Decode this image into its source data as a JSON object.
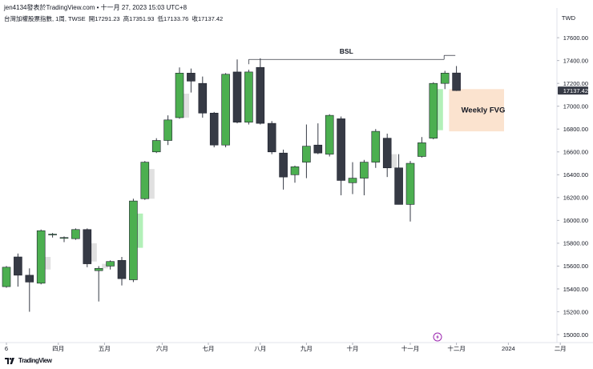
{
  "header": {
    "published": "jen4134發表於TradingView.com",
    "timestamp": "十一月 27, 2023 15:03 UTC+8"
  },
  "symbol": {
    "name": "台灣加權股票指數, 1周, TWSE",
    "open_label": "開",
    "open": "17291.23",
    "high_label": "高",
    "high": "17351.93",
    "low_label": "低",
    "low": "17133.76",
    "close_label": "收",
    "close": "17137.42"
  },
  "currency": "TWD",
  "footer": {
    "brand": "TradingView"
  },
  "colors": {
    "up": "#4caf50",
    "down": "#363a45",
    "fvg_fill": "#fbe3cf",
    "fvg_light": "#b2f0b8",
    "price_tag": "#363a45",
    "wick": "#363a45"
  },
  "chart_data": {
    "type": "candlestick",
    "interval": "weekly",
    "y_ticks": [
      15000,
      15200,
      15400,
      15600,
      15800,
      16000,
      16200,
      16400,
      16600,
      16800,
      17000,
      17200,
      17400,
      17600
    ],
    "y_tick_labels": [
      "15000.00",
      "15200.00",
      "15400.00",
      "15600.00",
      "15800.00",
      "16000.00",
      "16200.00",
      "16400.00",
      "16600.00",
      "16800.00",
      "17000.00",
      "17200.00",
      "17400.00",
      "17600.00"
    ],
    "ylim": [
      14930,
      17720
    ],
    "x_labels": [
      {
        "index": 0,
        "text": "6"
      },
      {
        "index": 4.5,
        "text": "四月"
      },
      {
        "index": 8.5,
        "text": "五月"
      },
      {
        "index": 13.5,
        "text": "六月"
      },
      {
        "index": 17.5,
        "text": "七月"
      },
      {
        "index": 22,
        "text": "八月"
      },
      {
        "index": 26,
        "text": "九月"
      },
      {
        "index": 30,
        "text": "十月"
      },
      {
        "index": 35,
        "text": "十一月"
      },
      {
        "index": 39,
        "text": "十二月"
      },
      {
        "index": 43.5,
        "text": "2024"
      },
      {
        "index": 48,
        "text": "二月"
      }
    ],
    "candles": [
      {
        "o": 15420,
        "h": 15600,
        "l": 15410,
        "c": 15590
      },
      {
        "o": 15680,
        "h": 15710,
        "l": 15420,
        "c": 15520
      },
      {
        "o": 15520,
        "h": 15580,
        "l": 15200,
        "c": 15460
      },
      {
        "o": 15450,
        "h": 15920,
        "l": 15440,
        "c": 15910
      },
      {
        "o": 15880,
        "h": 15890,
        "l": 15850,
        "c": 15880
      },
      {
        "o": 15850,
        "h": 15860,
        "l": 15810,
        "c": 15850
      },
      {
        "o": 15840,
        "h": 15930,
        "l": 15830,
        "c": 15920
      },
      {
        "o": 15920,
        "h": 15930,
        "l": 15590,
        "c": 15620
      },
      {
        "o": 15560,
        "h": 15600,
        "l": 15290,
        "c": 15580
      },
      {
        "o": 15600,
        "h": 15650,
        "l": 15570,
        "c": 15640
      },
      {
        "o": 15650,
        "h": 15680,
        "l": 15430,
        "c": 15490
      },
      {
        "o": 15480,
        "h": 16190,
        "l": 15460,
        "c": 16170
      },
      {
        "o": 16190,
        "h": 16520,
        "l": 16180,
        "c": 16510
      },
      {
        "o": 16600,
        "h": 16720,
        "l": 16590,
        "c": 16700
      },
      {
        "o": 16700,
        "h": 16920,
        "l": 16660,
        "c": 16880
      },
      {
        "o": 16900,
        "h": 17340,
        "l": 16890,
        "c": 17290
      },
      {
        "o": 17290,
        "h": 17330,
        "l": 17120,
        "c": 17220
      },
      {
        "o": 17200,
        "h": 17260,
        "l": 16900,
        "c": 16940
      },
      {
        "o": 16940,
        "h": 16950,
        "l": 16640,
        "c": 16660
      },
      {
        "o": 16660,
        "h": 17290,
        "l": 16640,
        "c": 17280
      },
      {
        "o": 17300,
        "h": 17410,
        "l": 16850,
        "c": 16860
      },
      {
        "o": 16860,
        "h": 17320,
        "l": 16840,
        "c": 17300
      },
      {
        "o": 17340,
        "h": 17420,
        "l": 16840,
        "c": 16850
      },
      {
        "o": 16850,
        "h": 16870,
        "l": 16580,
        "c": 16600
      },
      {
        "o": 16590,
        "h": 16620,
        "l": 16270,
        "c": 16380
      },
      {
        "o": 16400,
        "h": 16480,
        "l": 16330,
        "c": 16470
      },
      {
        "o": 16510,
        "h": 16840,
        "l": 16370,
        "c": 16650
      },
      {
        "o": 16660,
        "h": 16850,
        "l": 16580,
        "c": 16590
      },
      {
        "o": 16580,
        "h": 16930,
        "l": 16560,
        "c": 16920
      },
      {
        "o": 16890,
        "h": 16910,
        "l": 16220,
        "c": 16350
      },
      {
        "o": 16330,
        "h": 16510,
        "l": 16230,
        "c": 16370
      },
      {
        "o": 16370,
        "h": 16530,
        "l": 16220,
        "c": 16510
      },
      {
        "o": 16510,
        "h": 16800,
        "l": 16460,
        "c": 16780
      },
      {
        "o": 16720,
        "h": 16760,
        "l": 16380,
        "c": 16460
      },
      {
        "o": 16460,
        "h": 16580,
        "l": 16140,
        "c": 16140
      },
      {
        "o": 16140,
        "h": 16520,
        "l": 15990,
        "c": 16500
      },
      {
        "o": 16560,
        "h": 16730,
        "l": 16550,
        "c": 16680
      },
      {
        "o": 16720,
        "h": 17210,
        "l": 16710,
        "c": 17200
      },
      {
        "o": 17200,
        "h": 17310,
        "l": 17150,
        "c": 17290
      },
      {
        "o": 17291.23,
        "h": 17351.93,
        "l": 17133.76,
        "c": 17137.42
      }
    ],
    "ghost_bars": [
      {
        "index": 3,
        "from": 15570,
        "to": 15680,
        "color": "#e0e0e0"
      },
      {
        "index": 7,
        "from": 15640,
        "to": 15800,
        "color": "#e0e0e0"
      },
      {
        "index": 8,
        "from": 15580,
        "to": 15620,
        "color": "#e0e0e0"
      },
      {
        "index": 11,
        "from": 15760,
        "to": 16060,
        "color": "#b2f0b8"
      },
      {
        "index": 12,
        "from": 16190,
        "to": 16450,
        "color": "#e0e0e0"
      },
      {
        "index": 15,
        "from": 16900,
        "to": 17110,
        "color": "#e0e0e0"
      },
      {
        "index": 33,
        "from": 16460,
        "to": 16580,
        "color": "#e0e0e0"
      },
      {
        "index": 37,
        "from": 16790,
        "to": 17150,
        "color": "#b2f0b8"
      }
    ],
    "annotations": {
      "bsl": {
        "label": "BSL",
        "price": 17410,
        "from_index": 21,
        "to_index": 38
      },
      "fvg": {
        "label": "Weekly FVG",
        "low": 16780,
        "high": 17150,
        "from_index": 38.5
      }
    },
    "last_price_label": "17137.42",
    "extra_icon": "lightning-icon"
  }
}
